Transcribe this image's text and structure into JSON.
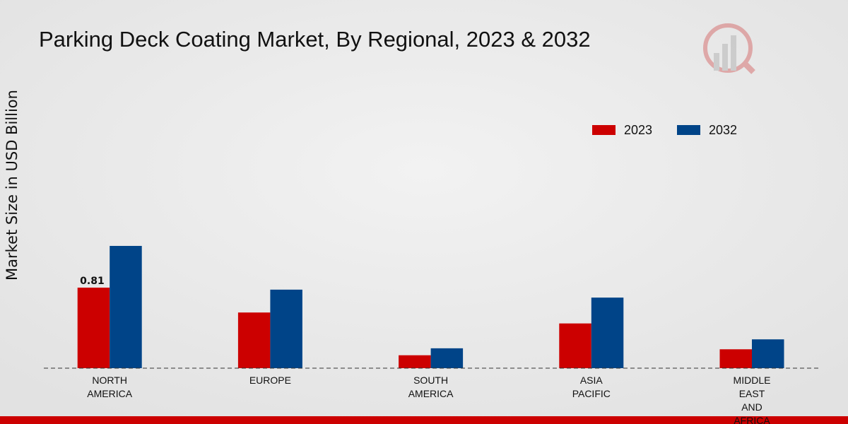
{
  "chart_data": {
    "type": "bar",
    "title": "Parking Deck Coating Market, By Regional, 2023 & 2032",
    "y_label": "Market Size in USD Billion",
    "categories": [
      "NORTH AMERICA",
      "EUROPE",
      "SOUTH AMERICA",
      "ASIA PACIFIC",
      "MIDDLE EAST AND AFRICA"
    ],
    "series": [
      {
        "name": "2023",
        "color": "#cc0000",
        "values": [
          0.81,
          0.56,
          0.13,
          0.45,
          0.19
        ],
        "value_labels": [
          "0.81",
          null,
          null,
          null,
          null
        ]
      },
      {
        "name": "2032",
        "color": "#004488",
        "values": [
          1.23,
          0.79,
          0.2,
          0.71,
          0.29
        ]
      }
    ],
    "ylim": [
      0,
      3
    ]
  }
}
